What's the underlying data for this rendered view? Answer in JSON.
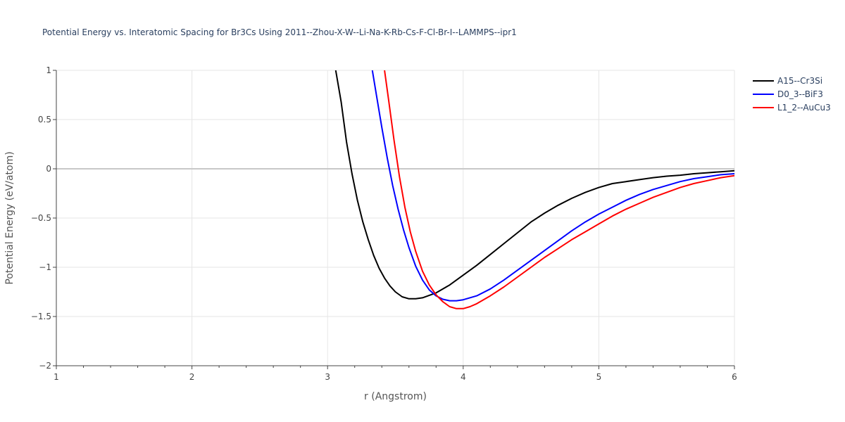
{
  "chart_data": {
    "type": "line",
    "title": "Potential Energy vs. Interatomic Spacing for Br3Cs Using 2011--Zhou-X-W--Li-Na-K-Rb-Cs-F-Cl-Br-I--LAMMPS--ipr1",
    "xlabel": "r (Angstrom)",
    "ylabel": "Potential Energy (eV/atom)",
    "xlim": [
      1,
      6
    ],
    "ylim": [
      -2,
      1
    ],
    "xticks": [
      1,
      2,
      3,
      4,
      5,
      6
    ],
    "xtick_labels": [
      "1",
      "2",
      "3",
      "4",
      "5",
      "6"
    ],
    "yticks": [
      -2,
      -1.5,
      -1,
      -0.5,
      0,
      0.5,
      1
    ],
    "ytick_labels": [
      "−2",
      "−1.5",
      "−1",
      "−0.5",
      "0",
      "0.5",
      "1"
    ],
    "grid": true,
    "legend_position": "top-right",
    "series": [
      {
        "name": "A15--Cr3Si",
        "color": "#000000",
        "x": [
          3.06,
          3.1,
          3.14,
          3.18,
          3.22,
          3.26,
          3.3,
          3.34,
          3.38,
          3.42,
          3.46,
          3.5,
          3.55,
          3.6,
          3.65,
          3.7,
          3.8,
          3.9,
          4.0,
          4.1,
          4.2,
          4.3,
          4.4,
          4.5,
          4.6,
          4.7,
          4.8,
          4.9,
          5.0,
          5.1,
          5.2,
          5.3,
          5.4,
          5.5,
          5.6,
          5.7,
          5.8,
          5.9,
          6.0
        ],
        "y": [
          1.0,
          0.68,
          0.27,
          -0.05,
          -0.32,
          -0.54,
          -0.72,
          -0.88,
          -1.01,
          -1.11,
          -1.19,
          -1.25,
          -1.3,
          -1.32,
          -1.32,
          -1.31,
          -1.26,
          -1.18,
          -1.08,
          -0.98,
          -0.87,
          -0.76,
          -0.65,
          -0.54,
          -0.45,
          -0.37,
          -0.3,
          -0.24,
          -0.19,
          -0.15,
          -0.13,
          -0.11,
          -0.09,
          -0.075,
          -0.065,
          -0.05,
          -0.04,
          -0.03,
          -0.02
        ]
      },
      {
        "name": "D0_3--BiF3",
        "color": "#0000ff",
        "x": [
          3.33,
          3.36,
          3.4,
          3.44,
          3.48,
          3.52,
          3.56,
          3.6,
          3.65,
          3.7,
          3.75,
          3.8,
          3.85,
          3.9,
          3.95,
          4.0,
          4.1,
          4.2,
          4.3,
          4.4,
          4.5,
          4.6,
          4.7,
          4.8,
          4.9,
          5.0,
          5.1,
          5.2,
          5.3,
          5.4,
          5.5,
          5.6,
          5.7,
          5.8,
          5.9,
          6.0
        ],
        "y": [
          1.0,
          0.75,
          0.42,
          0.11,
          -0.17,
          -0.41,
          -0.62,
          -0.8,
          -0.99,
          -1.13,
          -1.23,
          -1.29,
          -1.325,
          -1.34,
          -1.34,
          -1.33,
          -1.29,
          -1.22,
          -1.13,
          -1.03,
          -0.93,
          -0.83,
          -0.73,
          -0.63,
          -0.54,
          -0.46,
          -0.39,
          -0.32,
          -0.26,
          -0.21,
          -0.17,
          -0.13,
          -0.1,
          -0.08,
          -0.06,
          -0.05
        ]
      },
      {
        "name": "L1_2--AuCu3",
        "color": "#ff0000",
        "x": [
          3.42,
          3.45,
          3.49,
          3.53,
          3.57,
          3.61,
          3.65,
          3.7,
          3.75,
          3.8,
          3.85,
          3.9,
          3.95,
          4.0,
          4.05,
          4.1,
          4.2,
          4.3,
          4.4,
          4.5,
          4.6,
          4.7,
          4.8,
          4.9,
          5.0,
          5.1,
          5.2,
          5.3,
          5.4,
          5.5,
          5.6,
          5.7,
          5.8,
          5.9,
          6.0
        ],
        "y": [
          1.0,
          0.7,
          0.29,
          -0.08,
          -0.39,
          -0.64,
          -0.84,
          -1.04,
          -1.18,
          -1.28,
          -1.35,
          -1.4,
          -1.42,
          -1.42,
          -1.4,
          -1.37,
          -1.29,
          -1.2,
          -1.1,
          -1.0,
          -0.9,
          -0.81,
          -0.72,
          -0.64,
          -0.56,
          -0.48,
          -0.41,
          -0.35,
          -0.29,
          -0.24,
          -0.19,
          -0.15,
          -0.12,
          -0.09,
          -0.07
        ]
      }
    ]
  }
}
